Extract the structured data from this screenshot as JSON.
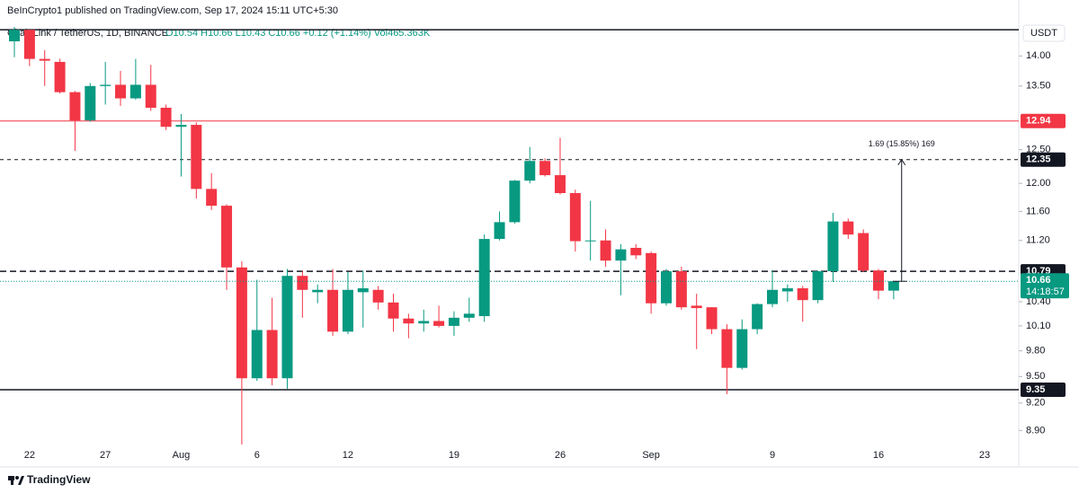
{
  "chart_data": {
    "type": "candlestick",
    "publisher": "BeInCrypto1 published on TradingView.com, Sep 17, 2024 15:11 UTC+5:30",
    "symbol": "ChainLink / TetherUS, 1D, BINANCE",
    "ohlc_text": "O10.54 H10.66 L10.43 C10.66 +0.12 (+1.14%) Vol465.363K",
    "currency": "USDT",
    "brand": "TradingView",
    "categories": [
      null,
      "22",
      null,
      null,
      null,
      null,
      "27",
      null,
      null,
      null,
      null,
      "Aug",
      null,
      null,
      null,
      null,
      "6",
      null,
      null,
      null,
      null,
      null,
      "12",
      null,
      null,
      null,
      null,
      null,
      null,
      "19",
      null,
      null,
      null,
      null,
      null,
      null,
      "26",
      null,
      null,
      null,
      null,
      null,
      "Sep",
      null,
      null,
      null,
      null,
      null,
      null,
      null,
      "9",
      null,
      null,
      null,
      null,
      null,
      null,
      "16",
      null,
      null,
      null,
      null,
      null,
      null,
      "23"
    ],
    "open": [
      14.25,
      14.45,
      13.95,
      13.9,
      13.4,
      12.95,
      13.5,
      13.52,
      13.3,
      13.52,
      13.15,
      12.85,
      12.88,
      11.92,
      11.68,
      10.84,
      9.48,
      10.05,
      9.48,
      10.73,
      10.52,
      10.55,
      10.03,
      10.52,
      10.55,
      10.39,
      10.19,
      10.13,
      10.16,
      10.1,
      10.2,
      10.22,
      11.22,
      11.45,
      12.04,
      12.33,
      12.12,
      11.86,
      11.19,
      11.2,
      10.93,
      11.1,
      11.03,
      10.38,
      10.79,
      10.35,
      10.33,
      10.06,
      9.6,
      10.06,
      10.37,
      10.53,
      10.57,
      10.42,
      10.79,
      11.46,
      11.3,
      10.8,
      10.54,
      null,
      null,
      null,
      null,
      null,
      null
    ],
    "high": [
      14.5,
      14.45,
      14.1,
      13.95,
      13.42,
      13.55,
      13.9,
      13.75,
      13.95,
      13.85,
      13.2,
      13.05,
      12.92,
      12.15,
      11.7,
      10.92,
      10.68,
      10.45,
      10.82,
      10.8,
      10.62,
      10.82,
      10.78,
      10.8,
      10.6,
      10.5,
      10.25,
      10.3,
      10.35,
      10.28,
      10.45,
      11.28,
      11.6,
      12.05,
      12.54,
      12.37,
      12.68,
      11.91,
      11.75,
      11.35,
      11.15,
      11.15,
      11.05,
      10.82,
      10.85,
      10.5,
      10.33,
      10.12,
      10.18,
      10.38,
      10.8,
      10.62,
      10.6,
      10.8,
      11.58,
      11.5,
      11.35,
      10.82,
      10.66,
      null,
      null,
      null,
      null,
      null,
      null
    ],
    "low": [
      13.98,
      13.83,
      13.5,
      13.38,
      12.48,
      12.93,
      13.2,
      13.18,
      13.28,
      13.1,
      12.8,
      12.1,
      11.78,
      11.62,
      10.55,
      8.75,
      9.45,
      9.4,
      9.36,
      10.2,
      10.38,
      9.98,
      10.0,
      10.08,
      10.3,
      10.03,
      9.95,
      10.03,
      10.08,
      9.98,
      10.15,
      10.15,
      11.2,
      11.43,
      12.0,
      12.1,
      11.84,
      11.05,
      10.93,
      10.85,
      10.48,
      10.95,
      10.25,
      10.35,
      10.3,
      9.82,
      10.0,
      9.3,
      9.58,
      10.0,
      10.33,
      10.4,
      10.15,
      10.38,
      10.65,
      11.22,
      10.78,
      10.43,
      10.43,
      null,
      null,
      null,
      null,
      null,
      null
    ],
    "close": [
      14.45,
      13.95,
      13.92,
      13.4,
      12.95,
      13.5,
      13.52,
      13.3,
      13.52,
      13.15,
      12.85,
      12.88,
      11.92,
      11.68,
      10.84,
      9.48,
      10.05,
      9.48,
      10.73,
      10.55,
      10.55,
      10.03,
      10.55,
      10.57,
      10.39,
      10.19,
      10.13,
      10.16,
      10.1,
      10.2,
      10.25,
      11.22,
      11.45,
      12.04,
      12.33,
      12.12,
      11.86,
      11.19,
      11.2,
      10.93,
      11.08,
      11.0,
      10.38,
      10.79,
      10.33,
      10.32,
      10.06,
      9.6,
      10.06,
      10.37,
      10.55,
      10.57,
      10.42,
      10.79,
      11.46,
      11.28,
      10.8,
      10.54,
      10.66,
      null,
      null,
      null,
      null,
      null,
      null
    ],
    "up_color": "#089981",
    "down_color": "#f23645",
    "log_scale": true,
    "ylim": [
      8.75,
      14.5
    ],
    "yticks": [
      {
        "value": 14,
        "label": "14.00"
      },
      {
        "value": 13.5,
        "label": "13.50"
      },
      {
        "value": 12.5,
        "label": "12.50"
      },
      {
        "value": 12,
        "label": "12.00"
      },
      {
        "value": 11.6,
        "label": "11.60"
      },
      {
        "value": 11.2,
        "label": "11.20"
      },
      {
        "value": 10.4,
        "label": "10.40"
      },
      {
        "value": 10.1,
        "label": "10.10"
      },
      {
        "value": 9.8,
        "label": "9.80"
      },
      {
        "value": 9.5,
        "label": "9.50"
      },
      {
        "value": 9.2,
        "label": "9.20"
      },
      {
        "value": 8.9,
        "label": "8.90"
      }
    ],
    "grid": false,
    "levels": [
      {
        "value": 14.45,
        "color": "#131722",
        "style": "solid"
      },
      {
        "value": 12.94,
        "color": "#f23645",
        "style": "solid",
        "label": true
      },
      {
        "value": 12.35,
        "color": "#131722",
        "style": "dotted",
        "label": true
      },
      {
        "value": 10.79,
        "color": "#131722",
        "style": "dashed",
        "label": true
      },
      {
        "value": 9.35,
        "color": "#131722",
        "style": "solid",
        "label": true
      }
    ],
    "last_price": 10.66,
    "countdown": "14:18:57",
    "measure": {
      "from": 10.66,
      "to": 12.35,
      "label": "1.69 (15.85%) 169"
    }
  }
}
